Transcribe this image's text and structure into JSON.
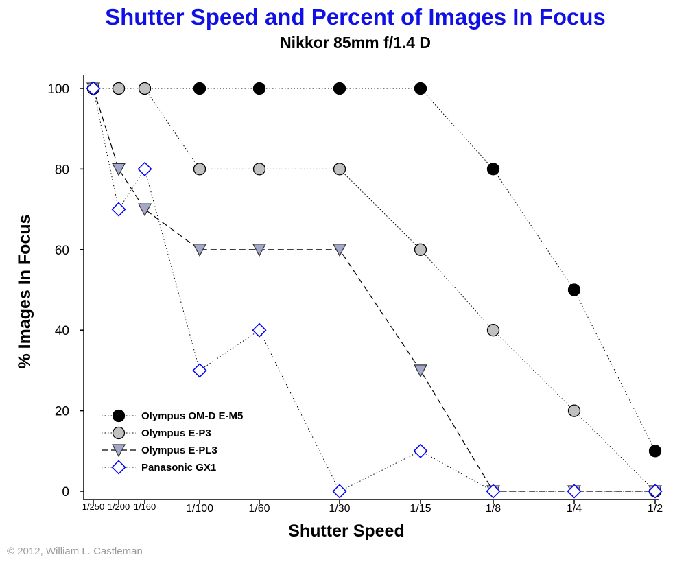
{
  "chart_data": {
    "type": "line",
    "title": "Shutter Speed and Percent of Images In Focus",
    "subtitle": "Nikkor 85mm f/1.4 D",
    "xlabel": "Shutter Speed",
    "ylabel": "% Images In Focus",
    "categories": [
      "1/250",
      "1/200",
      "1/160",
      "1/100",
      "1/60",
      "1/30",
      "1/15",
      "1/8",
      "1/4",
      "1/2"
    ],
    "yticks": [
      "0",
      "20",
      "40",
      "60",
      "80",
      "100"
    ],
    "ylim": [
      0,
      100
    ],
    "grid": false,
    "legend_position": "bottom-left",
    "series": [
      {
        "name": "Olympus OM-D E-M5",
        "marker": "circle",
        "line": "dotted",
        "color": "#000000",
        "fill": "#000000",
        "values": [
          100,
          null,
          null,
          100,
          100,
          100,
          100,
          80,
          50,
          10
        ]
      },
      {
        "name": "Olympus E-P3",
        "marker": "circle",
        "line": "dotted",
        "color": "#000000",
        "fill": "#c0c0c0",
        "values": [
          100,
          100,
          100,
          80,
          80,
          80,
          60,
          40,
          20,
          0
        ]
      },
      {
        "name": "Olympus E-PL3",
        "marker": "triangle-down",
        "line": "dashed",
        "color": "#000000",
        "fill": "#a4a8c8",
        "values": [
          100,
          80,
          70,
          60,
          60,
          60,
          30,
          0,
          0,
          0
        ]
      },
      {
        "name": "Panasonic GX1",
        "marker": "diamond",
        "line": "dotted",
        "color": "#0000ff",
        "fill": "#ffffff",
        "values": [
          100,
          70,
          80,
          30,
          40,
          0,
          10,
          0,
          0,
          0
        ]
      }
    ]
  },
  "copyright": "© 2012, William L. Castleman"
}
